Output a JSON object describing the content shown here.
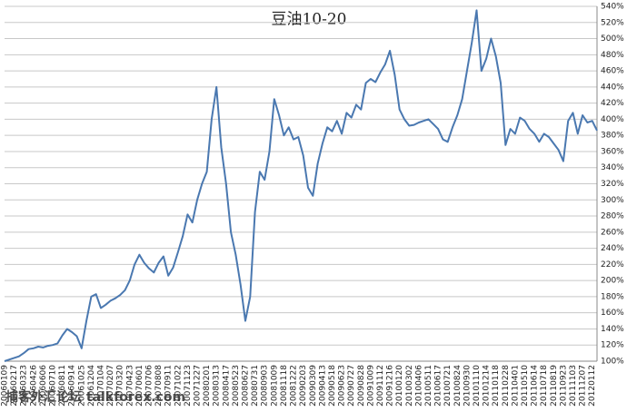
{
  "chart_data": {
    "type": "line",
    "title": "豆油10-20",
    "watermark": "捕客外汇论坛 talkforex.com",
    "color": "#4a78b0",
    "grid": true,
    "y_axis_side": "right",
    "ylim": [
      100,
      540
    ],
    "yticks": [
      {
        "value": 100,
        "label": "100%"
      },
      {
        "value": 120,
        "label": "120%"
      },
      {
        "value": 140,
        "label": "140%"
      },
      {
        "value": 160,
        "label": "160%"
      },
      {
        "value": 180,
        "label": "180%"
      },
      {
        "value": 200,
        "label": "200%"
      },
      {
        "value": 220,
        "label": "220%"
      },
      {
        "value": 240,
        "label": "240%"
      },
      {
        "value": 260,
        "label": "260%"
      },
      {
        "value": 280,
        "label": "280%"
      },
      {
        "value": 300,
        "label": "300%"
      },
      {
        "value": 320,
        "label": "320%"
      },
      {
        "value": 340,
        "label": "340%"
      },
      {
        "value": 360,
        "label": "360%"
      },
      {
        "value": 380,
        "label": "380%"
      },
      {
        "value": 400,
        "label": "400%"
      },
      {
        "value": 420,
        "label": "420%"
      },
      {
        "value": 440,
        "label": "440%"
      },
      {
        "value": 460,
        "label": "460%"
      },
      {
        "value": 480,
        "label": "480%"
      },
      {
        "value": 500,
        "label": "500%"
      },
      {
        "value": 520,
        "label": "520%"
      },
      {
        "value": 540,
        "label": "540%"
      }
    ],
    "categories": [
      "20060109",
      null,
      "20060217",
      null,
      "20060323",
      null,
      "20060426",
      null,
      "20060606",
      null,
      "20060710",
      null,
      "20060811",
      null,
      "20060914",
      null,
      "20061025",
      null,
      "20061204",
      null,
      "20070104",
      null,
      "20070207",
      null,
      "20070320",
      null,
      "20070423",
      null,
      "20070601",
      null,
      "20070706",
      null,
      "20070808",
      null,
      "20070911",
      null,
      "20071022",
      null,
      "20071123",
      null,
      "20071227",
      null,
      "20080201",
      null,
      "20080313",
      null,
      "20080417",
      null,
      "20080523",
      null,
      "20080627",
      null,
      "20080731",
      null,
      "20080903",
      null,
      "20081009",
      null,
      "20081118",
      null,
      "20081222",
      null,
      "20090203",
      null,
      "20090309",
      null,
      "20090413",
      null,
      "20090518",
      null,
      "20090623",
      null,
      "20090727",
      null,
      "20090828",
      null,
      "20091009",
      null,
      "20091112",
      null,
      "20091216",
      null,
      "20100120",
      null,
      "20100302",
      null,
      "20100406",
      null,
      "20100511",
      null,
      "20100617",
      null,
      "20100721",
      null,
      "20100824",
      null,
      "20100930",
      null,
      "20101110",
      null,
      "20101214",
      null,
      "20110118",
      null,
      "20110228",
      null,
      "20110401",
      null,
      "20110510",
      null,
      "20110614",
      null,
      "20110718",
      null,
      "20110819",
      null,
      "20110923",
      null,
      "20111103",
      null,
      "20111207",
      null,
      "20120112",
      null
    ],
    "values": [
      100,
      102,
      104,
      106,
      110,
      115,
      116,
      118,
      117,
      119,
      120,
      122,
      132,
      140,
      136,
      131,
      116,
      150,
      180,
      183,
      166,
      170,
      175,
      178,
      182,
      188,
      200,
      220,
      232,
      222,
      215,
      210,
      222,
      230,
      206,
      216,
      235,
      255,
      282,
      272,
      300,
      320,
      335,
      400,
      440,
      365,
      320,
      260,
      232,
      195,
      150,
      180,
      285,
      335,
      325,
      360,
      425,
      405,
      380,
      390,
      375,
      378,
      355,
      315,
      305,
      345,
      370,
      390,
      385,
      398,
      382,
      408,
      402,
      418,
      412,
      445,
      450,
      446,
      458,
      468,
      485,
      455,
      412,
      400,
      392,
      393,
      396,
      398,
      400,
      394,
      388,
      375,
      372,
      390,
      405,
      425,
      460,
      495,
      535,
      460,
      475,
      500,
      478,
      445,
      368,
      388,
      382,
      402,
      398,
      388,
      382,
      372,
      382,
      378,
      370,
      362,
      348,
      398,
      408,
      382,
      405,
      396,
      398,
      386
    ]
  }
}
